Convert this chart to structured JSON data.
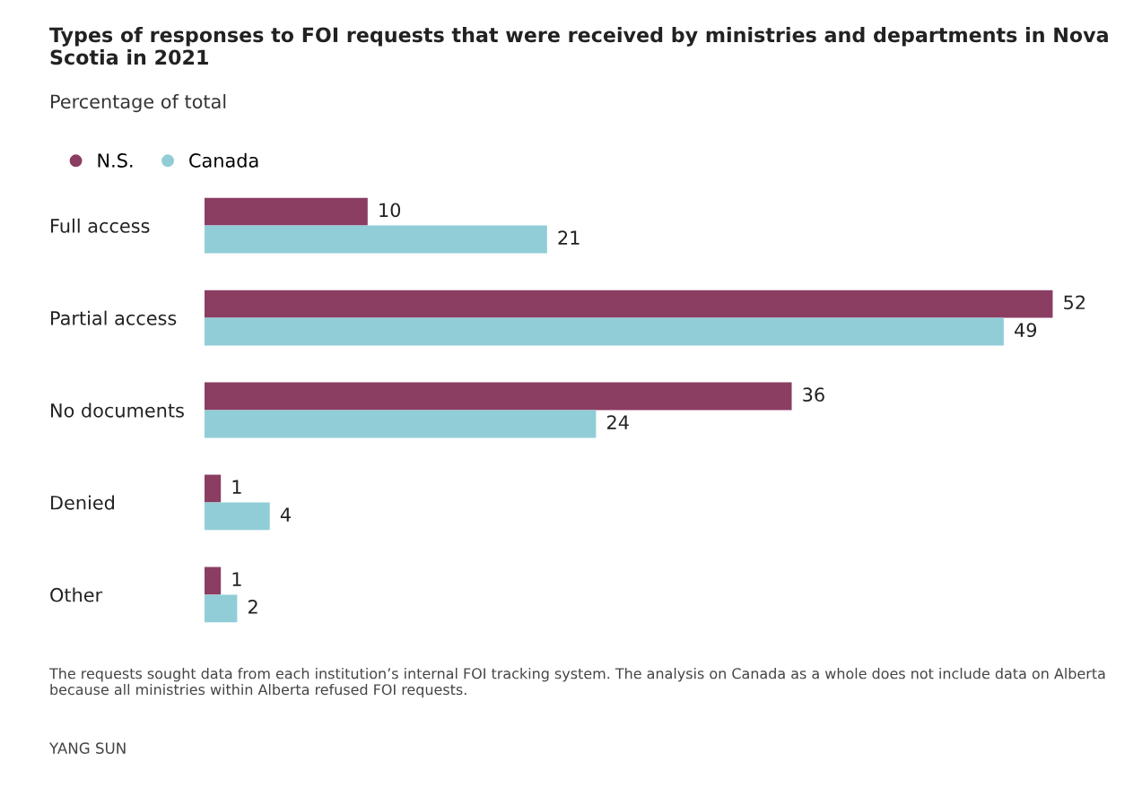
{
  "chart_data": {
    "type": "bar",
    "orientation": "horizontal",
    "title": "Types of responses to FOI requests that were received by ministries and departments in Nova Scotia in 2021",
    "subtitle": "Percentage of total",
    "categories": [
      "Full access",
      "Partial access",
      "No documents",
      "Denied",
      "Other"
    ],
    "series": [
      {
        "name": "N.S.",
        "color": "#8b3d62",
        "values": [
          10,
          52,
          36,
          1,
          1
        ]
      },
      {
        "name": "Canada",
        "color": "#90cdd7",
        "values": [
          21,
          49,
          24,
          4,
          2
        ]
      }
    ],
    "data_labels": true,
    "legend": "top left",
    "grid": false,
    "annotations": [
      "The requests sought data from each institution’s internal FOI tracking system. The analysis on Canada as a whole does not include data on Alberta because all ministries within Alberta refused FOI requests.",
      "YANG SUN"
    ]
  }
}
